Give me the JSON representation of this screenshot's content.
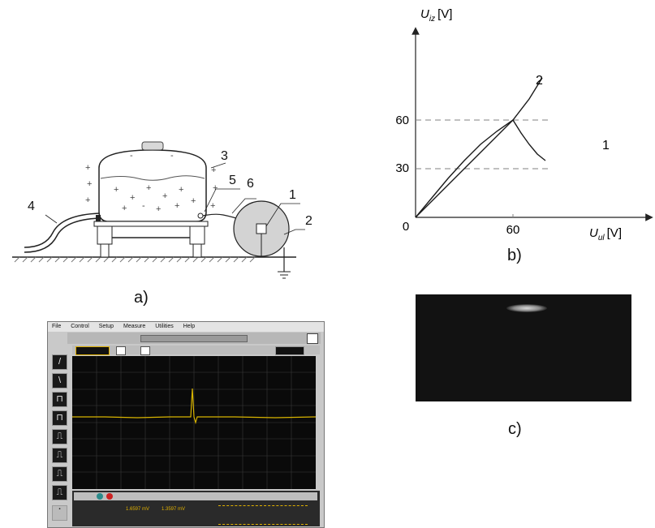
{
  "panel_a": {
    "label": "a)",
    "callouts": [
      "1",
      "2",
      "3",
      "4",
      "5",
      "6"
    ]
  },
  "panel_b": {
    "label": "b)",
    "y_axis_label": "U",
    "y_axis_sub": "iz",
    "y_axis_unit": "[V]",
    "x_axis_label": "U",
    "x_axis_sub": "ul",
    "x_axis_unit": "[V]",
    "origin_label": "0",
    "x_tick": "60",
    "y_ticks": [
      "60",
      "30"
    ],
    "curve_labels": [
      "1",
      "2"
    ]
  },
  "panel_c": {
    "label": "c)"
  },
  "oscilloscope": {
    "menu": [
      "File",
      "Control",
      "Setup",
      "Measure",
      "Utilities",
      "Help"
    ],
    "status": "",
    "readouts": [
      "1.6597 mV",
      "1.3597 mV"
    ]
  },
  "chart_data": {
    "type": "line",
    "title": "",
    "xlabel": "U_ul [V]",
    "ylabel": "U_iz [V]",
    "xlim": [
      0,
      80
    ],
    "ylim": [
      0,
      90
    ],
    "grid": false,
    "reference_lines_y": [
      60,
      30
    ],
    "series": [
      {
        "name": "2",
        "x": [
          0,
          10,
          20,
          30,
          40,
          50,
          60,
          70,
          78
        ],
        "y": [
          0,
          12,
          24,
          35,
          45,
          53,
          60,
          73,
          86
        ]
      },
      {
        "name": "1",
        "x": [
          0,
          10,
          20,
          30,
          40,
          50,
          60,
          65,
          70,
          75,
          80
        ],
        "y": [
          0,
          10,
          20,
          30,
          40,
          50,
          60,
          52,
          45,
          39,
          35
        ]
      }
    ],
    "colors": {
      "curve": "#1a1a1a",
      "dashed": "#808080"
    }
  }
}
